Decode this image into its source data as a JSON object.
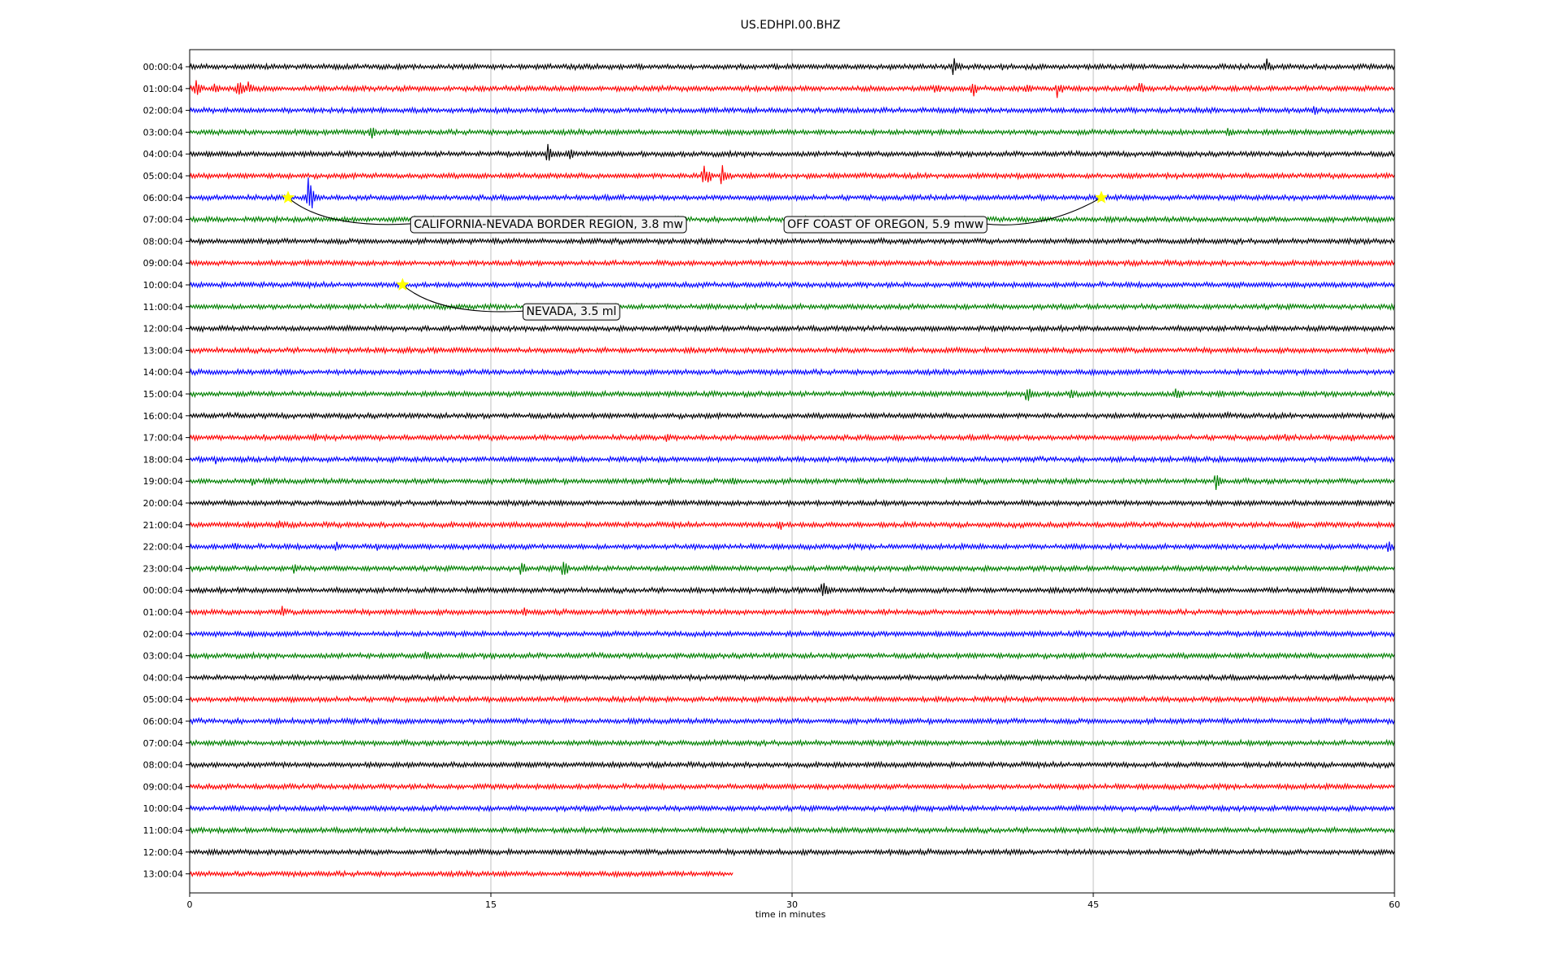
{
  "chart_data": {
    "type": "line",
    "title": "US.EDHPI.00.BHZ",
    "xlabel": "time in minutes",
    "ylabel": "",
    "xlim": [
      0,
      60
    ],
    "xticks": [
      "0",
      "15",
      "30",
      "45",
      "60"
    ],
    "grid": "vertical lines at 15, 30, 45",
    "row_labels": [
      "00:00:04",
      "01:00:04",
      "02:00:04",
      "03:00:04",
      "04:00:04",
      "05:00:04",
      "06:00:04",
      "07:00:04",
      "08:00:04",
      "09:00:04",
      "10:00:04",
      "11:00:04",
      "12:00:04",
      "13:00:04",
      "14:00:04",
      "15:00:04",
      "16:00:04",
      "17:00:04",
      "18:00:04",
      "19:00:04",
      "20:00:04",
      "21:00:04",
      "22:00:04",
      "23:00:04",
      "00:00:04",
      "01:00:04",
      "02:00:04",
      "03:00:04",
      "04:00:04",
      "05:00:04",
      "06:00:04",
      "07:00:04",
      "08:00:04",
      "09:00:04",
      "10:00:04",
      "11:00:04",
      "12:00:04",
      "13:00:04"
    ],
    "trace_colors": [
      "#000000",
      "#ff0000",
      "#0000ff",
      "#008000"
    ],
    "last_row_end_minute": 27.1,
    "bursts": [
      {
        "row": 0,
        "at": 38.0,
        "amp": 14
      },
      {
        "row": 0,
        "at": 40.5,
        "amp": 6
      },
      {
        "row": 0,
        "at": 53.6,
        "amp": 12
      },
      {
        "row": 1,
        "at": 0.3,
        "amp": 12
      },
      {
        "row": 1,
        "at": 1.2,
        "amp": 10
      },
      {
        "row": 1,
        "at": 2.4,
        "amp": 14
      },
      {
        "row": 1,
        "at": 2.9,
        "amp": 10
      },
      {
        "row": 1,
        "at": 37.1,
        "amp": 10
      },
      {
        "row": 1,
        "at": 39.0,
        "amp": 12
      },
      {
        "row": 1,
        "at": 41.7,
        "amp": 7
      },
      {
        "row": 1,
        "at": 43.2,
        "amp": 12
      },
      {
        "row": 1,
        "at": 47.3,
        "amp": 10
      },
      {
        "row": 2,
        "at": 56.0,
        "amp": 9
      },
      {
        "row": 3,
        "at": 9.0,
        "amp": 10
      },
      {
        "row": 3,
        "at": 10.3,
        "amp": 6
      },
      {
        "row": 3,
        "at": 51.7,
        "amp": 9
      },
      {
        "row": 4,
        "at": 17.8,
        "amp": 14
      },
      {
        "row": 4,
        "at": 18.9,
        "amp": 8
      },
      {
        "row": 5,
        "at": 25.6,
        "amp": 22
      },
      {
        "row": 5,
        "at": 26.5,
        "amp": 16
      },
      {
        "row": 6,
        "at": 5.9,
        "amp": 26
      },
      {
        "row": 6,
        "at": 47.2,
        "amp": 6
      },
      {
        "row": 15,
        "at": 41.7,
        "amp": 12
      },
      {
        "row": 15,
        "at": 43.9,
        "amp": 9
      },
      {
        "row": 15,
        "at": 49.1,
        "amp": 10
      },
      {
        "row": 15,
        "at": 51.2,
        "amp": 8
      },
      {
        "row": 16,
        "at": 51.6,
        "amp": 6
      },
      {
        "row": 17,
        "at": 3.7,
        "amp": 7
      },
      {
        "row": 17,
        "at": 6.2,
        "amp": 8
      },
      {
        "row": 17,
        "at": 23.7,
        "amp": 7
      },
      {
        "row": 17,
        "at": 30.5,
        "amp": 6
      },
      {
        "row": 17,
        "at": 35.2,
        "amp": 6
      },
      {
        "row": 17,
        "at": 54.6,
        "amp": 7
      },
      {
        "row": 17,
        "at": 57.9,
        "amp": 6
      },
      {
        "row": 18,
        "at": 1.3,
        "amp": 7
      },
      {
        "row": 18,
        "at": 2.5,
        "amp": 6
      },
      {
        "row": 18,
        "at": 31.6,
        "amp": 6
      },
      {
        "row": 19,
        "at": 3.1,
        "amp": 8
      },
      {
        "row": 19,
        "at": 23.9,
        "amp": 8
      },
      {
        "row": 19,
        "at": 27.0,
        "amp": 8
      },
      {
        "row": 19,
        "at": 51.1,
        "amp": 12
      },
      {
        "row": 20,
        "at": 29.8,
        "amp": 7
      },
      {
        "row": 21,
        "at": 4.4,
        "amp": 10
      },
      {
        "row": 21,
        "at": 29.3,
        "amp": 10
      },
      {
        "row": 21,
        "at": 55.0,
        "amp": 8
      },
      {
        "row": 22,
        "at": 2.3,
        "amp": 7
      },
      {
        "row": 22,
        "at": 7.3,
        "amp": 7
      },
      {
        "row": 22,
        "at": 9.3,
        "amp": 7
      },
      {
        "row": 22,
        "at": 59.7,
        "amp": 10
      },
      {
        "row": 23,
        "at": 5.2,
        "amp": 8
      },
      {
        "row": 23,
        "at": 16.5,
        "amp": 10
      },
      {
        "row": 23,
        "at": 18.6,
        "amp": 12
      },
      {
        "row": 24,
        "at": 31.5,
        "amp": 12
      },
      {
        "row": 24,
        "at": 3.6,
        "amp": 5
      },
      {
        "row": 25,
        "at": 4.6,
        "amp": 8
      },
      {
        "row": 25,
        "at": 11.0,
        "amp": 6
      },
      {
        "row": 25,
        "at": 16.6,
        "amp": 7
      },
      {
        "row": 25,
        "at": 34.5,
        "amp": 6
      },
      {
        "row": 27,
        "at": 11.7,
        "amp": 9
      }
    ],
    "events": [
      {
        "label": "CALIFORNIA-NEVADA BORDER REGION, 3.8 mw",
        "row": 6,
        "minute": 4.9,
        "label_row": 7.2,
        "label_minute": 11.0
      },
      {
        "label": "OFF COAST OF OREGON, 5.9 mww",
        "row": 6,
        "minute": 45.4,
        "label_row": 7.2,
        "label_minute": 29.6
      },
      {
        "label": "NEVADA, 3.5 ml",
        "row": 10,
        "minute": 10.6,
        "label_row": 11.2,
        "label_minute": 16.6
      }
    ]
  }
}
